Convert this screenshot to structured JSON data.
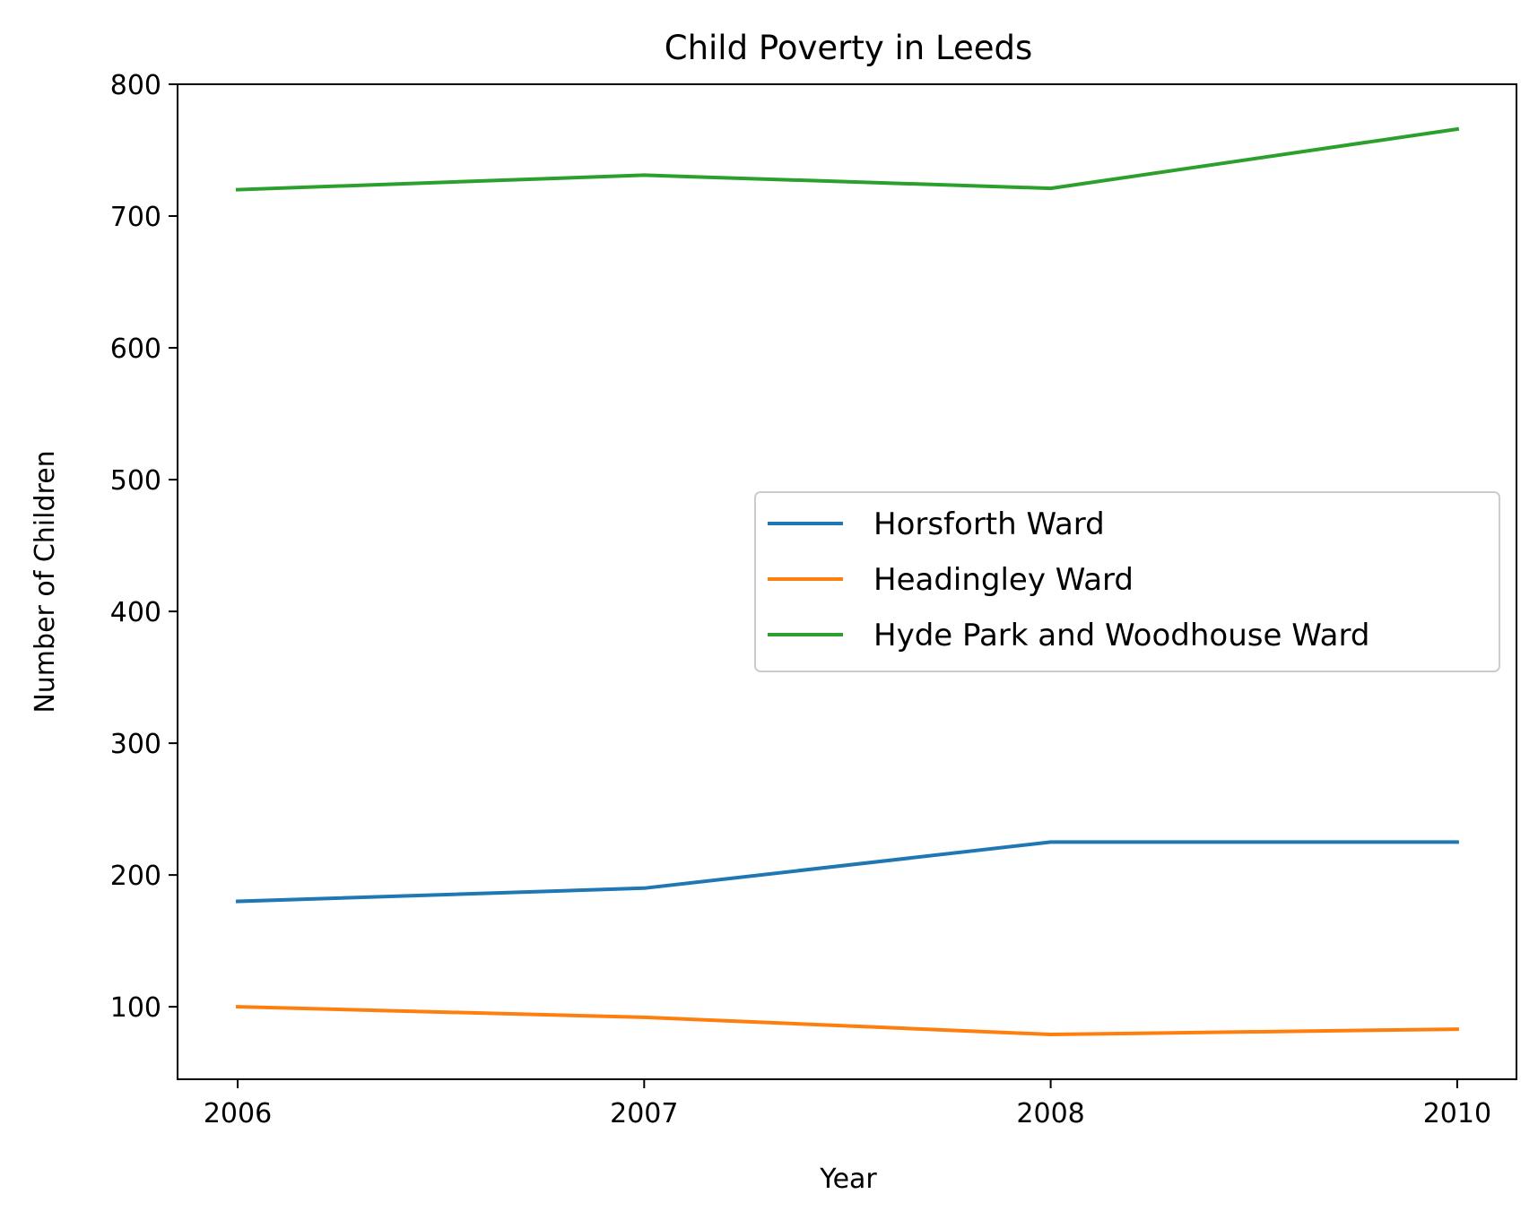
{
  "chart_data": {
    "type": "line",
    "title": "Child Poverty in Leeds",
    "xlabel": "Year",
    "ylabel": "Number of Children",
    "categories": [
      "2006",
      "2007",
      "2008",
      "2010"
    ],
    "ylim": [
      45,
      800
    ],
    "yticks": [
      100,
      200,
      300,
      400,
      500,
      600,
      700,
      800
    ],
    "grid": false,
    "legend_position": "center-right",
    "series": [
      {
        "name": "Horsforth Ward",
        "color": "#1f77b4",
        "values": [
          180,
          190,
          225,
          225
        ]
      },
      {
        "name": "Headingley Ward",
        "color": "#ff7f0e",
        "values": [
          100,
          92,
          79,
          83
        ]
      },
      {
        "name": "Hyde Park and Woodhouse Ward",
        "color": "#2ca02c",
        "values": [
          720,
          731,
          721,
          766
        ]
      }
    ]
  }
}
